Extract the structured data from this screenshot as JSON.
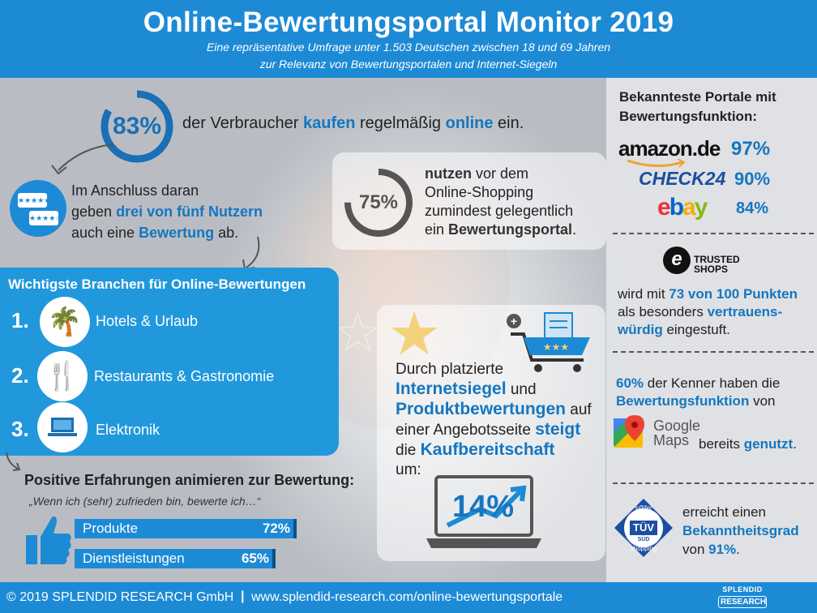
{
  "header": {
    "title": "Online-Bewertungsportal Monitor 2019",
    "subtitle_line1": "Eine repräsentative Umfrage unter 1.503 Deutschen zwischen 18 und 69 Jahren",
    "subtitle_line2": "zur Relevanz von Bewertungsportalen und Internet-Siegeln"
  },
  "stat_buy": {
    "value_label": "83%",
    "value": 83,
    "text_a": "der Verbraucher ",
    "text_b": "kaufen",
    "text_c": " regelmäßig ",
    "text_d": "online",
    "text_e": " ein."
  },
  "stat_review": {
    "line1": "Im Anschluss daran",
    "line2a": " geben ",
    "line2b": "drei von fünf Nutzern",
    "line3a": "auch eine ",
    "line3b": "Bewertung",
    "line3c": " ab."
  },
  "stat_portal": {
    "value_label": "75%",
    "value": 75,
    "line1a": "nutzen",
    "line1b": " vor dem",
    "line2": "Online-Shopping",
    "line3": "zumindest gelegentlich",
    "line4a": "ein ",
    "line4b": "Bewertungsportal",
    "line4c": "."
  },
  "branchen": {
    "title": "Wichtigste Branchen für Online-Bewertungen",
    "items": [
      {
        "rank": "1.",
        "label": "Hotels & Urlaub",
        "icon": "palm-tree-icon"
      },
      {
        "rank": "2.",
        "label": "Restaurants & Gastronomie",
        "icon": "cutlery-icon"
      },
      {
        "rank": "3.",
        "label": "Elektronik",
        "icon": "laptop-icon"
      }
    ]
  },
  "positive": {
    "title": "Positive Erfahrungen animieren zur Bewertung:",
    "quote": "„Wenn ich (sehr) zufrieden bin, bewerte ich…“"
  },
  "siegel": {
    "line1": "Durch platzierte",
    "line2a": "Internetsiegel",
    "line2b": " und",
    "line3a": "Produktbewertungen",
    "line3b": " auf",
    "line4a": "einer Angebotsseite ",
    "line4b": "steigt",
    "line5a": "die ",
    "line5b": "Kaufbereitschaft",
    "line6": "um:",
    "value_label": "14%"
  },
  "portale": {
    "title_line1": "Bekannteste Portale mit",
    "title_line2": "Bewertungsfunktion:",
    "items": [
      {
        "name": "amazon.de",
        "value_label": "97%"
      },
      {
        "name": "CHECK24",
        "value_label": "90%"
      },
      {
        "name": "ebay",
        "value_label": "84%"
      }
    ]
  },
  "trusted": {
    "logo_line1": "TRUSTED",
    "logo_line2": "SHOPS",
    "line1a": "wird mit ",
    "line1b": "73 von 100 Punkten",
    "line2a": "als besonders ",
    "line2b": "vertrauens-",
    "line3a": "würdig",
    "line3b": " eingestuft."
  },
  "maps": {
    "line1a": "60%",
    "line1b": " der Kenner haben die",
    "line2a": "Bewertungsfunktion",
    "line2b": " von",
    "logo_line1": "Google",
    "logo_line2": "Maps",
    "line3a": "bereits ",
    "line3b": "genutzt",
    "line3c": "."
  },
  "tuev": {
    "badge_top": "s@fer",
    "badge_mid": "TÜV",
    "badge_sub": "SÜD",
    "badge_bottom": "shopping",
    "line1": "erreicht einen",
    "line2": "Bekanntheitsgrad",
    "line3a": "von ",
    "line3b": "91%",
    "line3c": "."
  },
  "footer": {
    "copyright": "© 2019 SPLENDID RESEARCH GmbH",
    "separator": "|",
    "url": "www.splendid-research.com/online-bewertungsportale",
    "logo_line1": "SPLENDID",
    "logo_line2": "RESEARCH"
  },
  "colors": {
    "accent": "#1d8ad6",
    "text_blue": "#1576bf",
    "ring_blue": "#1b6fb5",
    "ring_gray": "#555555",
    "star_gold": "#f2d27a"
  },
  "chart_data": [
    {
      "type": "pie",
      "title": "",
      "categories": [
        "kaufen regelmäßig online"
      ],
      "values": [
        83
      ]
    },
    {
      "type": "pie",
      "title": "",
      "categories": [
        "nutzen Bewertungsportal"
      ],
      "values": [
        75
      ]
    },
    {
      "type": "bar",
      "title": "Positive Erfahrungen animieren zur Bewertung:",
      "categories": [
        "Produkte",
        "Dienstleistungen"
      ],
      "values": [
        72,
        65
      ],
      "value_labels": [
        "72%",
        "65%"
      ]
    },
    {
      "type": "bar",
      "title": "Bekannteste Portale mit Bewertungsfunktion:",
      "categories": [
        "amazon.de",
        "CHECK24",
        "ebay"
      ],
      "values": [
        97,
        90,
        84
      ]
    }
  ]
}
